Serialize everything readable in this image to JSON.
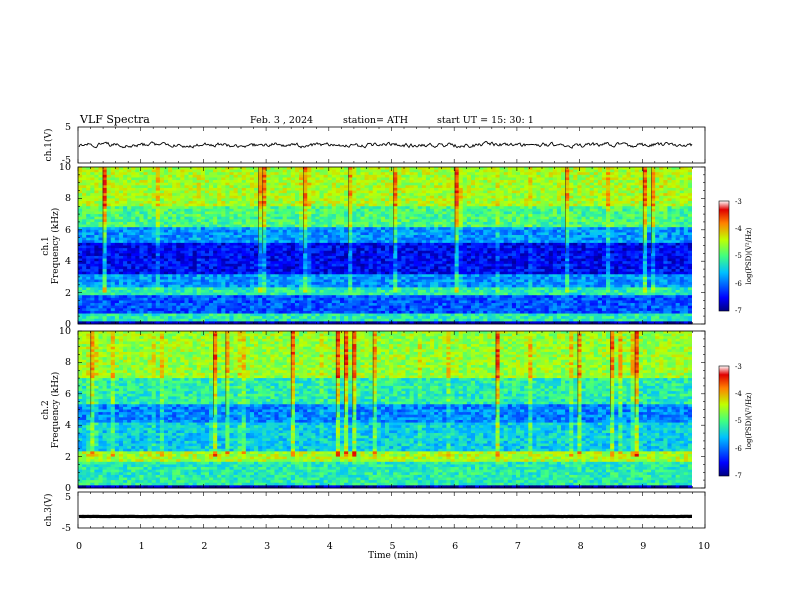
{
  "header": {
    "title": "VLF  Spectra",
    "date": "Feb. 3  , 2024",
    "station": "station= ATH",
    "start_ut": "start  UT  =    15: 30: 1"
  },
  "chart_data": [
    {
      "type": "line",
      "panel": "ch1-waveform",
      "ylabel": "ch.1(V)",
      "ylim": [
        -5,
        5
      ],
      "yticks": [
        "5",
        "-5"
      ],
      "xlim": [
        0,
        10
      ],
      "series": [
        {
          "values_description_level": 0
        }
      ],
      "grid": false
    },
    {
      "type": "heatmap",
      "panel": "ch1-spectrogram",
      "ylabel": "ch.1\nFrequency  (kHz)",
      "ylim": [
        0,
        10
      ],
      "yticks": [
        "0",
        "2",
        "4",
        "6",
        "8",
        "10"
      ],
      "xlim": [
        0,
        9.8
      ],
      "colorbar": {
        "label": "log(PSD)(V²/Hz)",
        "range": [
          -7,
          -3
        ],
        "ticks": [
          "-3",
          "-4",
          "-5",
          "-6",
          "-7"
        ]
      }
    },
    {
      "type": "heatmap",
      "panel": "ch2-spectrogram",
      "ylabel": "ch.2\nFrequency  (kHz)",
      "ylim": [
        0,
        10
      ],
      "yticks": [
        "0",
        "2",
        "4",
        "6",
        "8",
        "10"
      ],
      "xlim": [
        0,
        9.8
      ],
      "colorbar": {
        "label": "log(PSD)(V²/Hz)",
        "range": [
          -7,
          -3
        ],
        "ticks": [
          "-3",
          "-4",
          "-5",
          "-6",
          "-7"
        ]
      }
    },
    {
      "type": "line",
      "panel": "ch3-waveform",
      "ylabel": "ch.3(V)",
      "ylim": [
        -5,
        5
      ],
      "yticks": [
        "5",
        "-5"
      ],
      "xlim": [
        0,
        10
      ],
      "series": [
        {
          "values_description_level": -1.8
        }
      ],
      "xlabel": "Time  (min)",
      "xticks": [
        "0",
        "1",
        "2",
        "3",
        "4",
        "5",
        "6",
        "7",
        "8",
        "9",
        "10"
      ]
    }
  ],
  "labels": {
    "ch1_wave": "ch.1(V)",
    "ch1_spec_a": "ch.1",
    "ch1_spec_b": "Frequency  (kHz)",
    "ch2_spec_a": "ch.2",
    "ch2_spec_b": "Frequency  (kHz)",
    "ch3_wave": "ch.3(V)",
    "xlabel": "Time  (min)",
    "cbar1": "log(PSD)(V²/Hz)",
    "cbar2": "log(PSD)(V²/Hz)"
  },
  "ticks": {
    "wave_top": "5",
    "wave_bot": "-5",
    "freq": [
      "0",
      "2",
      "4",
      "6",
      "8",
      "10"
    ],
    "time": [
      "0",
      "1",
      "2",
      "3",
      "4",
      "5",
      "6",
      "7",
      "8",
      "9",
      "10"
    ],
    "cbar": [
      "-3",
      "-4",
      "-5",
      "-6",
      "-7"
    ]
  }
}
